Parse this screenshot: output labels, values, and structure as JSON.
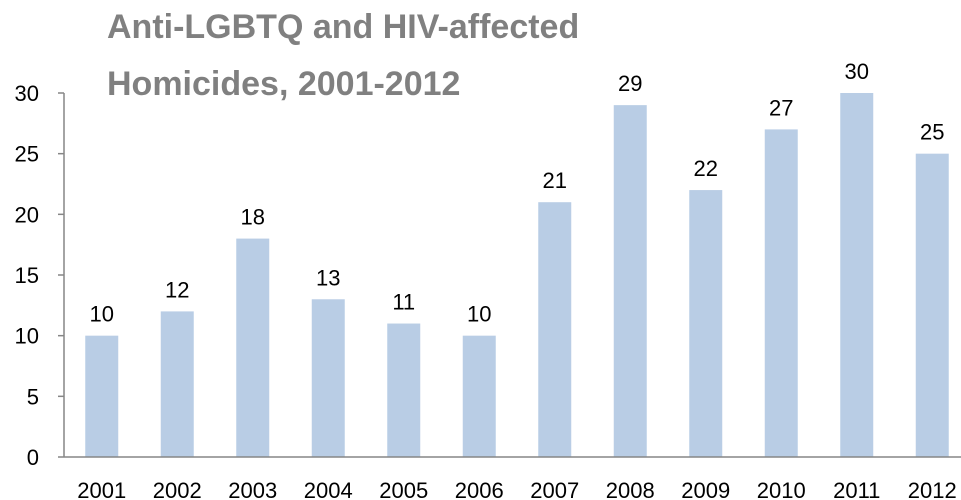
{
  "chart_data": {
    "type": "bar",
    "title_lines": [
      "Anti-LGBTQ and HIV-affected",
      "Homicides, 2001-2012"
    ],
    "categories": [
      "2001",
      "2002",
      "2003",
      "2004",
      "2005",
      "2006",
      "2007",
      "2008",
      "2009",
      "2010",
      "2011",
      "2012"
    ],
    "values": [
      10,
      12,
      18,
      13,
      11,
      10,
      21,
      29,
      22,
      27,
      30,
      25
    ],
    "data_labels": [
      "10",
      "12",
      "18",
      "13",
      "11",
      "10",
      "21",
      "29",
      "22",
      "27",
      "30",
      "25"
    ],
    "y_ticks": [
      "0",
      "5",
      "10",
      "15",
      "20",
      "25",
      "30"
    ],
    "xlabel": "",
    "ylabel": "",
    "ylim": [
      0,
      30
    ],
    "grid": false,
    "legend": "none",
    "bar_color": "#b9cde5",
    "axis_color": "#868686",
    "title_color": "#808080"
  }
}
